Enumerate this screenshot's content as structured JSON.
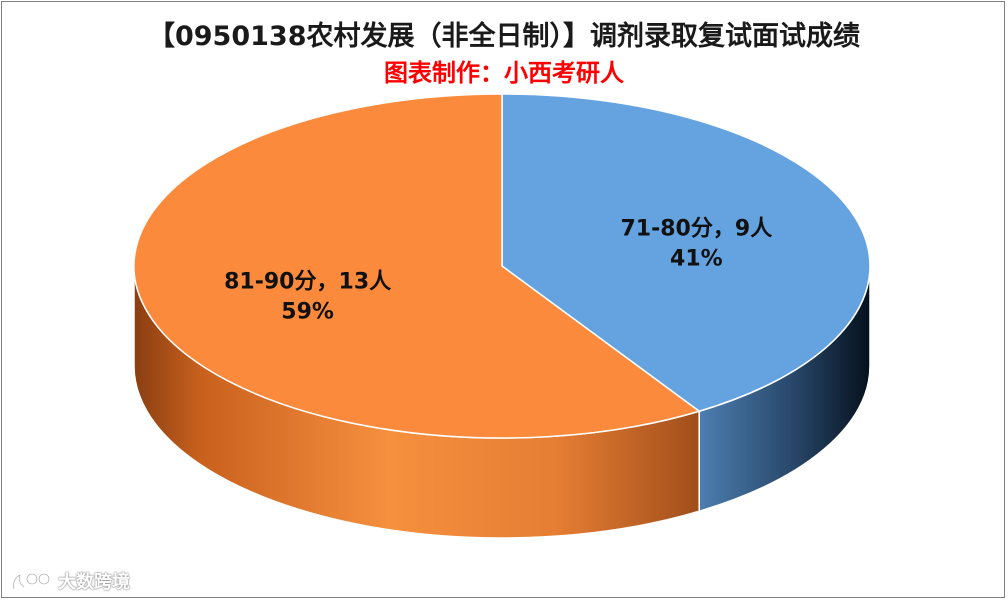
{
  "chart_data": {
    "type": "pie",
    "title": "【0950138农村发展（非全日制）】调剂录取复试面试成绩",
    "subtitle": "图表制作：小西考研人",
    "slices": [
      {
        "category": "71-80分",
        "count_label": "9人",
        "count": 9,
        "percent_label": "41%",
        "percent": 41,
        "color": "#64a3e0"
      },
      {
        "category": "81-90分",
        "count_label": "13人",
        "count": 13,
        "percent_label": "59%",
        "percent": 59,
        "color": "#fb8a3c"
      }
    ],
    "legend": "none",
    "three_d": true
  },
  "watermark": {
    "text": "大数跨境"
  }
}
